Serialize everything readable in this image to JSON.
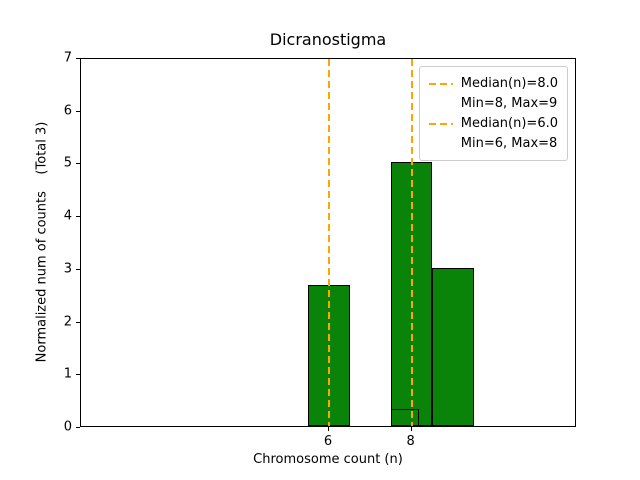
{
  "chart_data": {
    "type": "bar",
    "title": "Dicranostigma",
    "xlabel": "Chromosome count (n)",
    "ylabel": "Normalized num of counts    (Total 3)",
    "xlim": [
      0,
      12
    ],
    "ylim": [
      0,
      7
    ],
    "xticks": [
      6,
      8
    ],
    "yticks": [
      0,
      1,
      2,
      3,
      4,
      5,
      6,
      7
    ],
    "bar_fill_color": "#0a8408",
    "bar_edge_color": "#000000",
    "median_line_color": "#FFA500",
    "bars": [
      {
        "x0": 5.5,
        "x1": 6.5,
        "height": 2.67,
        "filled": true
      },
      {
        "x0": 7.5,
        "x1": 8.5,
        "height": 5.0,
        "filled": true
      },
      {
        "x0": 8.5,
        "x1": 9.5,
        "height": 3.0,
        "filled": true
      },
      {
        "x0": 7.5,
        "x1": 8.17,
        "height": 0.33,
        "filled": false
      }
    ],
    "median_lines": [
      {
        "x": 8.0
      },
      {
        "x": 6.0
      }
    ],
    "legend": [
      {
        "symbol": "dashed-line",
        "label": "Median(n)=8.0"
      },
      {
        "symbol": "none",
        "label": "Min=8, Max=9"
      },
      {
        "symbol": "dashed-line",
        "label": "Median(n)=6.0"
      },
      {
        "symbol": "none",
        "label": "Min=6, Max=8"
      }
    ]
  }
}
